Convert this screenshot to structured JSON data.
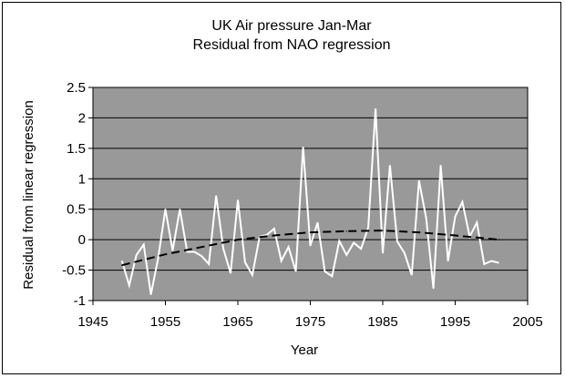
{
  "chart_data": {
    "type": "line",
    "title": "UK Air pressure Jan-Mar",
    "subtitle": "Residual from NAO regression",
    "xlabel": "Year",
    "ylabel": "Residual from linear regression",
    "xlim": [
      1945,
      2005
    ],
    "ylim": [
      -1,
      2.5
    ],
    "xticks": [
      "1945",
      "1955",
      "1965",
      "1975",
      "1985",
      "1995",
      "2005"
    ],
    "yticks": [
      "2.5",
      "2",
      "1.5",
      "1",
      "0.5",
      "0",
      "-0.5",
      "-1"
    ],
    "grid": true,
    "plot_background": "#999999",
    "series": [
      {
        "style": "solid",
        "color": "#ffffff",
        "x": [
          1949,
          1950,
          1951,
          1952,
          1953,
          1954,
          1955,
          1956,
          1957,
          1958,
          1959,
          1960,
          1961,
          1962,
          1963,
          1964,
          1965,
          1966,
          1967,
          1968,
          1969,
          1970,
          1971,
          1972,
          1973,
          1974,
          1975,
          1976,
          1977,
          1978,
          1979,
          1980,
          1981,
          1982,
          1983,
          1984,
          1985,
          1986,
          1987,
          1988,
          1989,
          1990,
          1991,
          1992,
          1993,
          1994,
          1995,
          1996,
          1997,
          1998,
          1999,
          2000,
          2001
        ],
        "y": [
          -0.35,
          -0.75,
          -0.25,
          -0.08,
          -0.9,
          -0.3,
          0.5,
          -0.18,
          0.5,
          -0.2,
          -0.2,
          -0.27,
          -0.4,
          0.72,
          -0.15,
          -0.55,
          0.65,
          -0.37,
          -0.58,
          0.05,
          0.08,
          0.18,
          -0.35,
          -0.12,
          -0.52,
          1.52,
          -0.1,
          0.28,
          -0.52,
          -0.6,
          -0.02,
          -0.25,
          -0.05,
          -0.15,
          0.2,
          2.15,
          -0.22,
          1.22,
          -0.03,
          -0.22,
          -0.58,
          0.97,
          0.35,
          -0.8,
          1.22,
          -0.35,
          0.38,
          0.62,
          0.05,
          0.28,
          -0.4,
          -0.35,
          -0.38
        ]
      },
      {
        "style": "dashed",
        "color": "#000000",
        "x": [
          1949,
          1955,
          1960,
          1965,
          1970,
          1975,
          1980,
          1985,
          1990,
          1995,
          2001
        ],
        "y": [
          -0.42,
          -0.24,
          -0.12,
          0.0,
          0.07,
          0.12,
          0.14,
          0.15,
          0.12,
          0.07,
          0.0
        ]
      }
    ]
  }
}
